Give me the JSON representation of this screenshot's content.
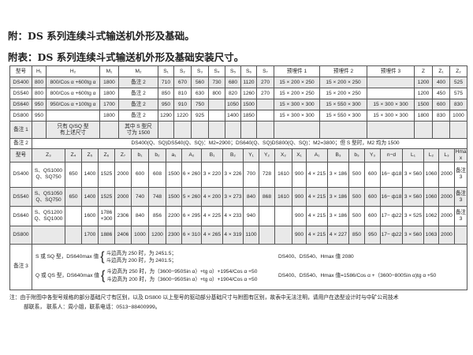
{
  "titles": {
    "t1": "附：DS 系列连续斗式输送机外形及基础。",
    "t2": "附表：DS 系列连续斗式输送机外形及基础安装尺寸。"
  },
  "table1": {
    "header": [
      "型号",
      "H₁",
      "H₂",
      "M₁",
      "M₂",
      "S₁",
      "S₂",
      "S₃",
      "S₄",
      "S₅",
      "S₆",
      "S₇",
      "预埋件 1",
      "预埋件 2",
      "预埋件 3",
      "Z",
      "Z₁",
      "Z₂"
    ],
    "rows": [
      [
        "DS400",
        "800",
        "800/Cos α +600tg α",
        "1800",
        "备注 2",
        "710",
        "670",
        "560",
        "730",
        "680",
        "1120",
        "270",
        "15 × 200 × 250",
        "15 × 200 × 250",
        "",
        "1200",
        "400",
        "525"
      ],
      [
        "DS540",
        "800",
        "800/Cos α +600tg α",
        "1800",
        "备注 2",
        "850",
        "810",
        "630",
        "800",
        "820",
        "1260",
        "270",
        "15 × 200 × 250",
        "15 × 200 × 250",
        "",
        "1200",
        "450",
        "575"
      ],
      [
        "DS640",
        "950",
        "950/Cos α +100tg α",
        "1700",
        "备注 2",
        "950",
        "910",
        "750",
        "",
        "1050",
        "1500",
        "",
        "15 × 300 × 300",
        "15 × 550 × 300",
        "15 × 300 × 300",
        "1500",
        "600",
        "830"
      ],
      [
        "DS800",
        "950",
        "",
        "1800",
        "备注 2",
        "1290",
        "1220",
        "925",
        "",
        "1400",
        "1850",
        "",
        "15 × 300 × 300",
        "15 × 550 × 300",
        "15 × 300 × 300",
        "1800",
        "830",
        "1000"
      ],
      [
        "备注 1",
        "",
        "只有 Q/SQ 型\n有上述尺寸",
        "",
        "其中 S 型尺\n寸为 1500",
        "",
        "",
        "",
        "",
        "",
        "",
        "",
        "",
        "",
        "",
        "",
        "",
        ""
      ]
    ]
  },
  "note2": {
    "label": "备注 2",
    "text": "DS400(Q、SQ)DS540(Q、SQ)：M2=2900；DS640(Q、SQ)DS800(Q、SQ)：M2=3800；但 S 型时，M2 均为 1500"
  },
  "table2": {
    "header": [
      "型号",
      "Z₃",
      "Z₄",
      "Z₅",
      "Z₆",
      "Z₇",
      "b₁",
      "b₂",
      "a₁",
      "A₂",
      "B₁",
      "B₂",
      "Y₁",
      "Y₂",
      "X₂",
      "X₁",
      "A₁",
      "B₃",
      "b₃",
      "Y₃",
      "n−d",
      "L₁",
      "L₂",
      "L₃",
      "Hmax"
    ],
    "rows": [
      [
        "DS400",
        "S、QS1000\nQ、SQ750",
        "650",
        "1400",
        "1525",
        "2000",
        "600",
        "608",
        "1500",
        "6 × 260",
        "3 × 220",
        "3 × 226",
        "700",
        "728",
        "1610",
        "900",
        "4 × 215",
        "3 × 186",
        "500",
        "600",
        "16− ф18",
        "3 × 560",
        "1060",
        "2000",
        "备注\n3"
      ],
      [
        "DS540",
        "S、QS1050\nQ、SQ750",
        "650",
        "1400",
        "1525",
        "2000",
        "740",
        "748",
        "1500",
        "5 × 260",
        "4 × 200",
        "3 × 273",
        "840",
        "868",
        "1610",
        "900",
        "4 × 215",
        "3 × 186",
        "500",
        "600",
        "16− ф18",
        "3 × 560",
        "1060",
        "2000",
        "备注\n3"
      ],
      [
        "DS640",
        "S、QS1200\nQ、SQ1000",
        "",
        "1600",
        "1786\n+300",
        "2306",
        "840",
        "856",
        "2200",
        "6 × 295",
        "4 × 225",
        "4 × 233",
        "940",
        "",
        "",
        "900",
        "4 × 215",
        "3 × 186",
        "500",
        "600",
        "17− ф22",
        "3 × 525",
        "1062",
        "2000",
        "备注\n3"
      ],
      [
        "DS800",
        "",
        "",
        "1700",
        "1886",
        "2406",
        "1000",
        "1200",
        "2300",
        "6 × 310",
        "4 × 265",
        "4 × 319",
        "1100",
        "",
        "",
        "900",
        "4 × 215",
        "4 × 227",
        "850",
        "950",
        "17− ф22",
        "3 × 560",
        "1063",
        "2000",
        ""
      ]
    ]
  },
  "note3": {
    "label": "备注 3",
    "s_type": "S 或 SQ 型，DS640max 值",
    "s_line1": "斗边高为 250 时，为 2451.5；",
    "s_line2": "斗边高为 200 时，为 2401.5；",
    "q_type": "Q 或 QS 型，DS640max 值",
    "q_line1": "斗边高为 250 时，为（3600−950Sin α）+tg α）+1954/Cos α +50",
    "q_line2": "斗边高为 200 时，为（3600−950Sin α）+tg α）+1904/Cos α +50",
    "right1": "DS400、DS540、Hmax 值 2080",
    "right2": "DS400、DS540、Hmax 值=1586/Cos α +（3600−800Sin α)tg α +50"
  },
  "footnote": {
    "line1": "注：由于附图中各型号规格的部分基础尺寸有区别，以及 DS800 以上型号的驱动部分基础尺寸与附图有区别，故表中无法注明，请用户在选型设计时与中矿公司技术",
    "line2": "部联系， 联系人：周小姐，联系电话：0513−88400999。"
  }
}
